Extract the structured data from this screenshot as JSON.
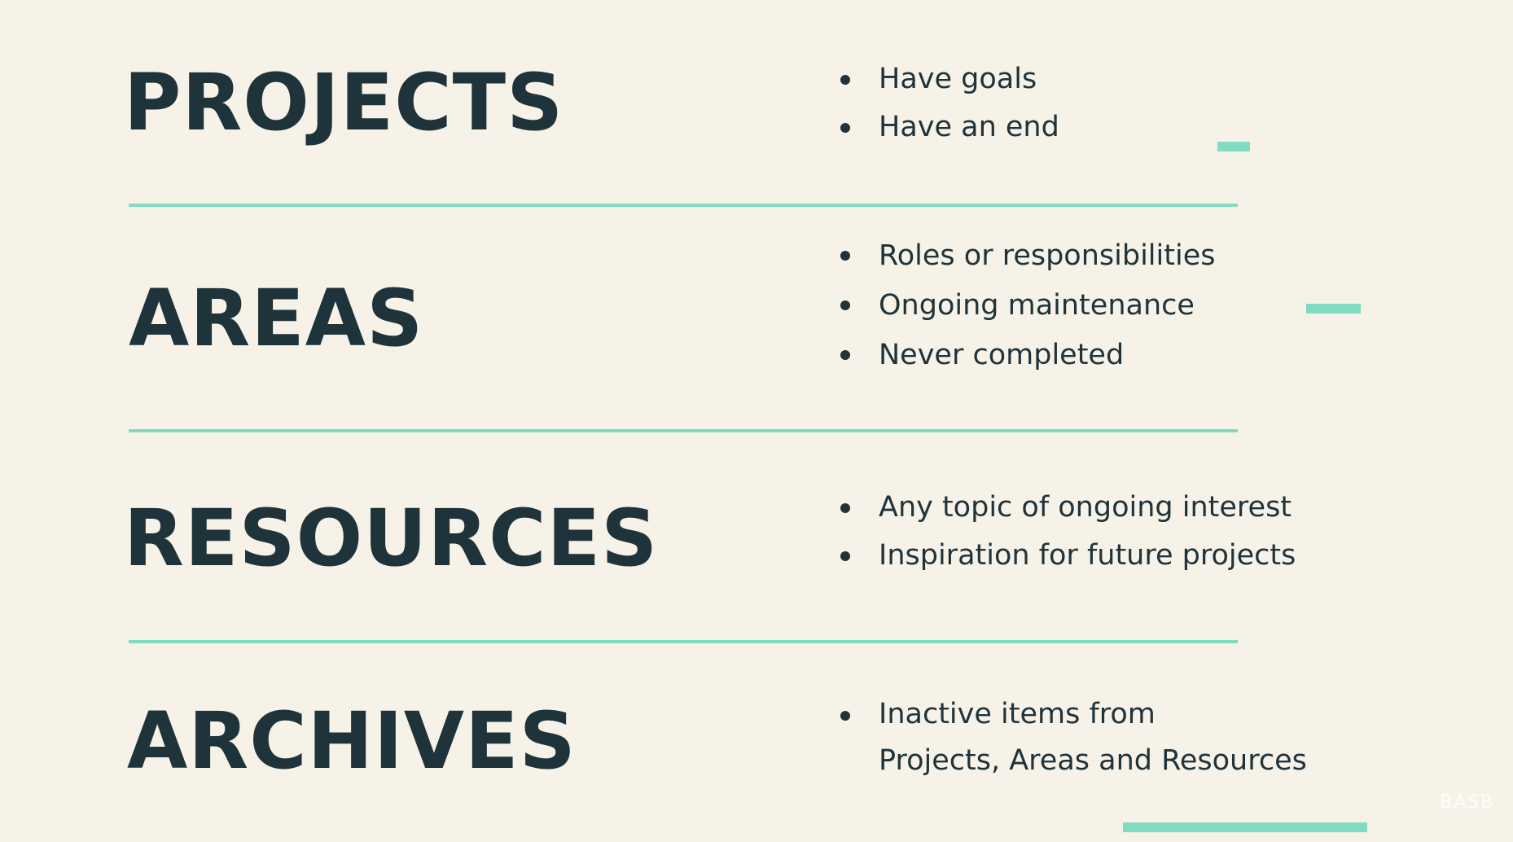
{
  "colors": {
    "background": "#f7f2e8",
    "text": "#1f333a",
    "accent": "#7fdcc1"
  },
  "sections": [
    {
      "title": "PROJECTS",
      "bullets": [
        "Have goals",
        "Have an end"
      ]
    },
    {
      "title": "AREAS",
      "bullets": [
        "Roles or responsibilities",
        "Ongoing maintenance",
        "Never completed"
      ]
    },
    {
      "title": "RESOURCES",
      "bullets": [
        "Any topic of ongoing interest",
        "Inspiration for future projects"
      ]
    },
    {
      "title": "ARCHIVES",
      "bullets": [
        {
          "line1": "Inactive items from",
          "line2": "Projects, Areas and Resources"
        }
      ]
    }
  ],
  "watermark": "BASB",
  "icons": {
    "bullet": "bullet-dot-icon"
  }
}
